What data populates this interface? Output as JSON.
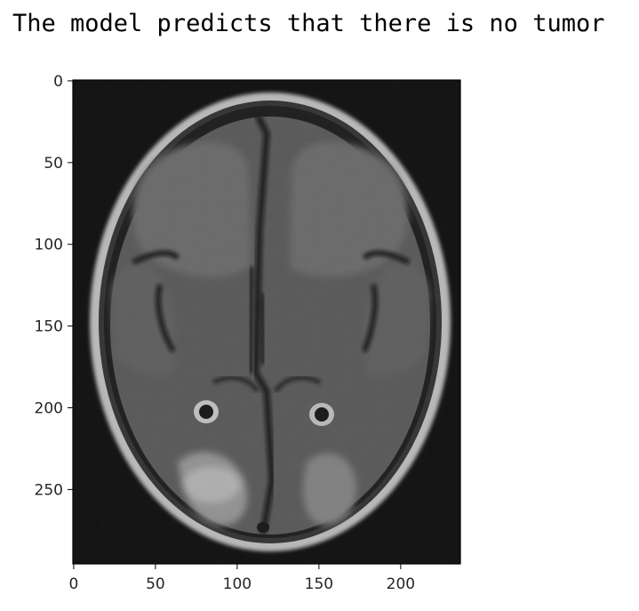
{
  "output_text": "The model predicts that there is no tumor",
  "axes": {
    "xlim": [
      -0.5,
      236.5
    ],
    "ylim": [
      295.5,
      -0.5
    ],
    "x_ticks": [
      "0",
      "50",
      "100",
      "150",
      "200"
    ],
    "y_ticks": [
      "0",
      "50",
      "100",
      "150",
      "200",
      "250"
    ]
  },
  "image_content": "brain-mri-axial-grayscale"
}
